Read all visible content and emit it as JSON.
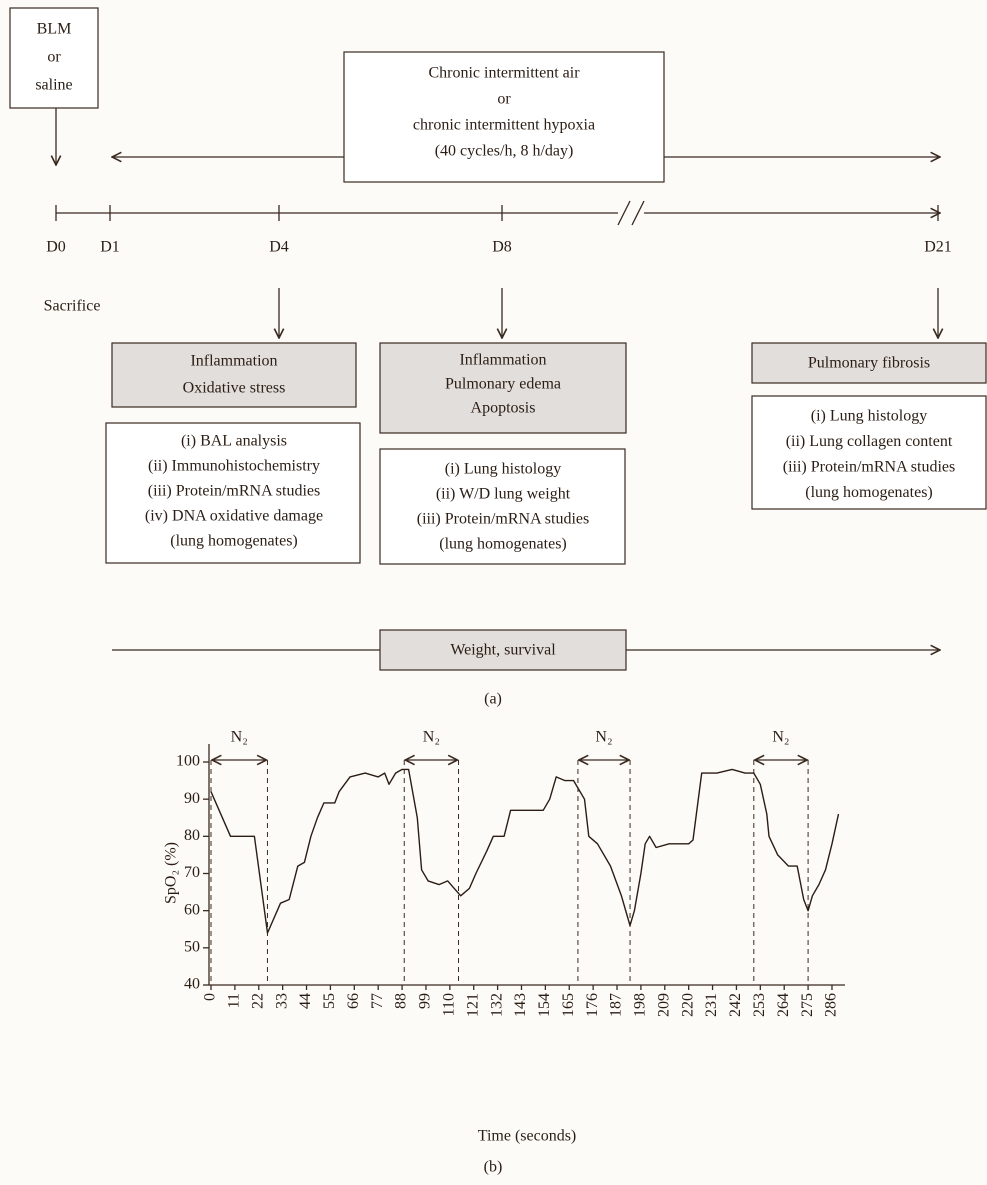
{
  "diagram": {
    "start_box": [
      "BLM",
      "or",
      "saline"
    ],
    "exposure_box": [
      "Chronic intermittent air",
      "or",
      "chronic intermittent hypoxia",
      "(40 cycles/h, 8 h/day)"
    ],
    "days": [
      "D0",
      "D1",
      "D4",
      "D8",
      "D21"
    ],
    "sacrifice": "Sacrifice",
    "groups": [
      {
        "header": [
          "Inflammation",
          "Oxidative stress"
        ],
        "items": [
          "(i) BAL analysis",
          "(ii) Immunohistochemistry",
          "(iii) Protein/mRNA studies",
          "(iv) DNA oxidative damage",
          "(lung homogenates)"
        ]
      },
      {
        "header": [
          "Inflammation",
          "Pulmonary edema",
          "Apoptosis"
        ],
        "items": [
          "(i) Lung histology",
          "(ii) W/D lung weight",
          "(iii) Protein/mRNA studies",
          "(lung homogenates)"
        ]
      },
      {
        "header": [
          "Pulmonary fibrosis"
        ],
        "items": [
          "(i) Lung histology",
          "(ii) Lung collagen content",
          "(iii) Protein/mRNA studies",
          "(lung homogenates)"
        ]
      }
    ],
    "monitoring": "Weight, survival",
    "caption": "(a)"
  },
  "chart_data": {
    "type": "line",
    "caption": "(b)",
    "x_label": "Time (seconds)",
    "y_label": "SpO₂ (%)",
    "color": "#2b1d14",
    "x": [
      0,
      9,
      20,
      26,
      32,
      36,
      40,
      43,
      46,
      49,
      52,
      57,
      59,
      64,
      71,
      77,
      80,
      82,
      85,
      88,
      91,
      95,
      97,
      100,
      105,
      109,
      112,
      115,
      119,
      122,
      127,
      130,
      135,
      138,
      153,
      156,
      159,
      163,
      167,
      169,
      172,
      174,
      178,
      184,
      189,
      193,
      195,
      198,
      200,
      202,
      205,
      211,
      220,
      222,
      226,
      233,
      240,
      246,
      250,
      253,
      256,
      257,
      261,
      266,
      270,
      273,
      275,
      277,
      280,
      283,
      286,
      289
    ],
    "values": [
      92,
      80,
      80,
      54,
      62,
      63,
      72,
      73,
      80,
      85,
      89,
      89,
      92,
      96,
      97,
      96,
      97,
      94,
      97,
      98,
      98,
      85,
      71,
      68,
      67,
      68,
      66,
      64,
      66,
      70,
      76,
      80,
      80,
      87,
      87,
      90,
      96,
      95,
      95,
      93,
      90,
      80,
      78,
      72,
      64,
      56,
      60,
      70,
      78,
      80,
      77,
      78,
      78,
      79,
      97,
      97,
      98,
      97,
      97,
      94,
      86,
      80,
      75,
      72,
      72,
      63,
      60,
      64,
      67,
      71,
      78,
      86
    ],
    "xlim": [
      0,
      292
    ],
    "ylim": [
      40,
      100
    ],
    "xticks": [
      0,
      11,
      22,
      33,
      44,
      55,
      66,
      77,
      88,
      99,
      110,
      121,
      132,
      143,
      154,
      165,
      176,
      187,
      198,
      209,
      220,
      231,
      242,
      253,
      264,
      275,
      286
    ],
    "yticks": [
      40,
      50,
      60,
      70,
      80,
      90,
      100
    ],
    "annotations": [
      {
        "text": "N₂",
        "span": [
          0,
          26
        ]
      },
      {
        "text": "N₂",
        "span": [
          89,
          114
        ]
      },
      {
        "text": "N₂",
        "span": [
          169,
          193
        ]
      },
      {
        "text": "N₂",
        "span": [
          250,
          275
        ]
      }
    ]
  }
}
